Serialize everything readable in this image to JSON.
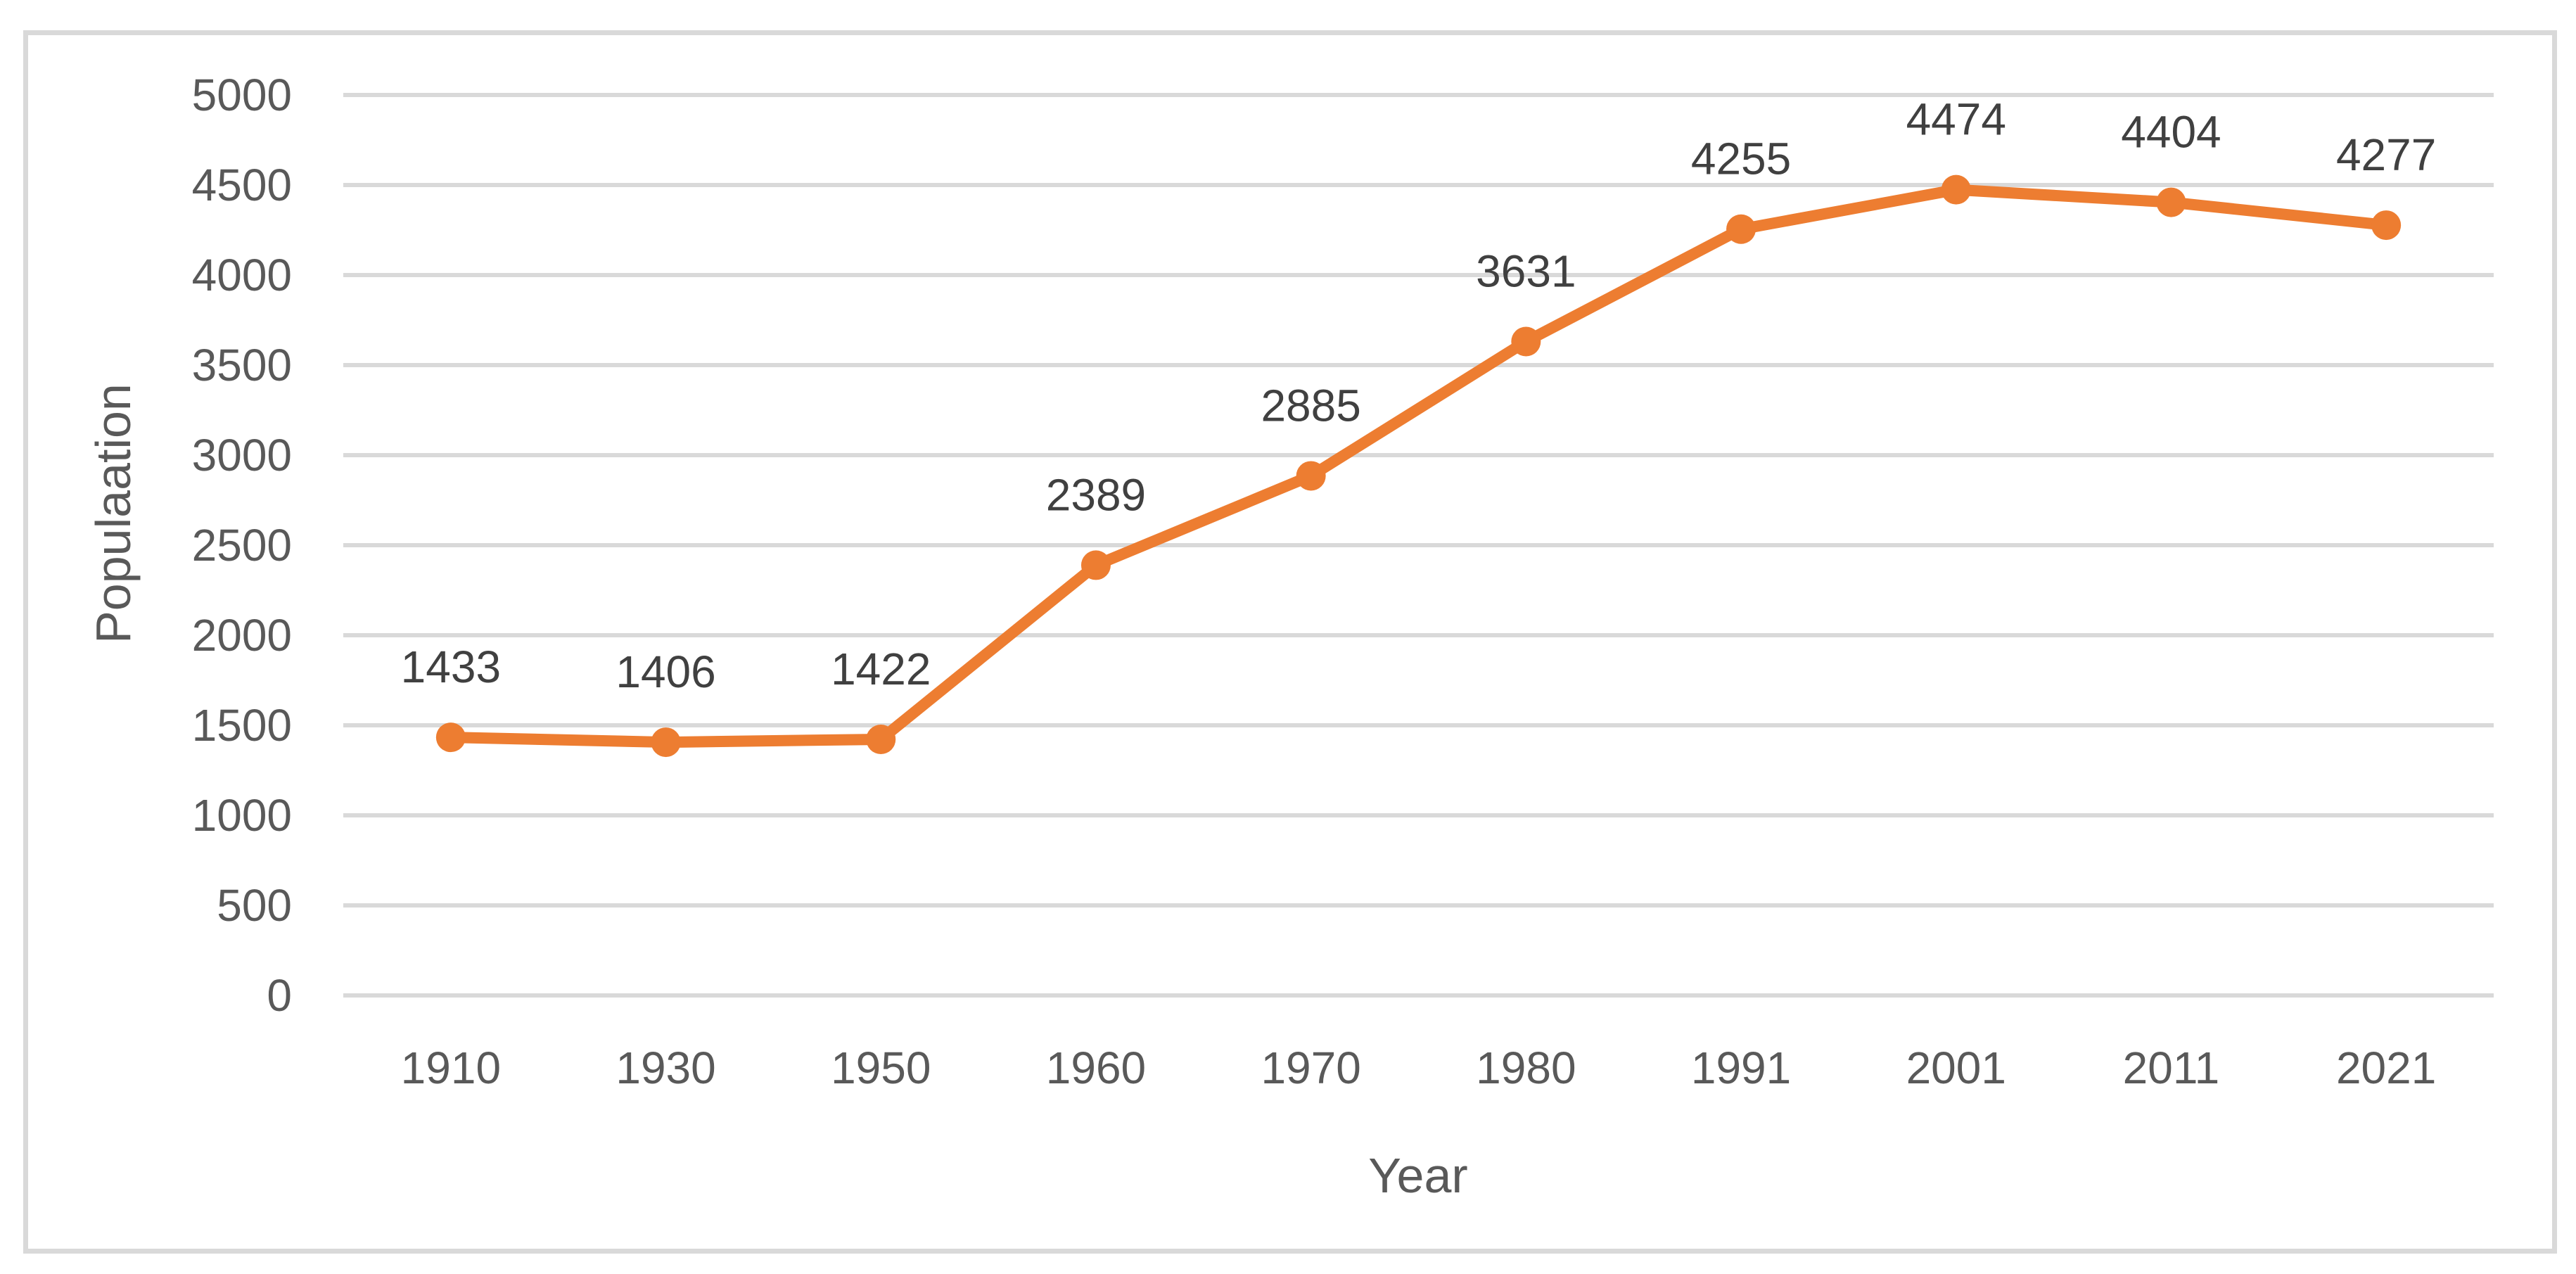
{
  "chart_data": {
    "type": "line",
    "title": "",
    "xlabel": "Year",
    "ylabel": "Populaation",
    "categories": [
      "1910",
      "1930",
      "1950",
      "1960",
      "1970",
      "1980",
      "1991",
      "2001",
      "2011",
      "2021"
    ],
    "series": [
      {
        "name": "Population",
        "values": [
          1433,
          1406,
          1422,
          2389,
          2885,
          3631,
          4255,
          4474,
          4404,
          4277
        ]
      }
    ],
    "data_labels": [
      "1433",
      "1406",
      "1422",
      "2389",
      "2885",
      "3631",
      "4255",
      "4474",
      "4404",
      "4277"
    ],
    "ylim": [
      0,
      5000
    ],
    "ytick_step": 500,
    "yticks": [
      "0",
      "500",
      "1000",
      "1500",
      "2000",
      "2500",
      "3000",
      "3500",
      "4000",
      "4500",
      "5000"
    ],
    "grid": "horizontal-only",
    "legend": "none",
    "marker": "circle",
    "colors": {
      "series": "#ED7D31",
      "gridline": "#D9D9D9",
      "frame_border": "#D9D9D9",
      "tick_label": "#595959",
      "axis_title": "#595959",
      "data_label": "#404040",
      "background": "#FFFFFF"
    }
  }
}
